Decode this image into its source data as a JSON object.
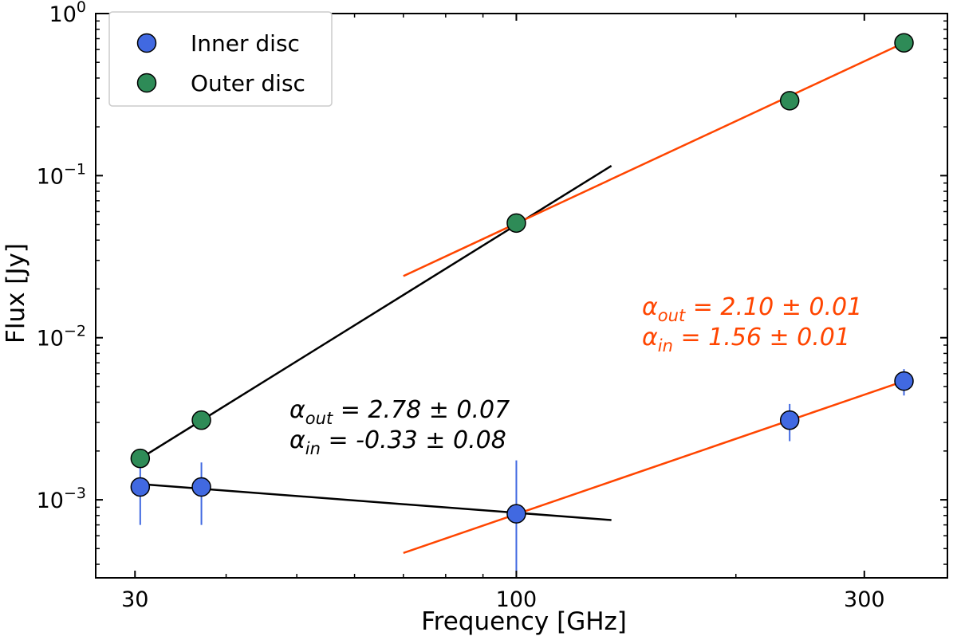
{
  "chart_data": {
    "type": "scatter",
    "xlabel": "Frequency [GHz]",
    "ylabel": "Flux [Jy]",
    "xscale": "log",
    "yscale": "log",
    "xlim": [
      26.5,
      390
    ],
    "ylim": [
      0.00033,
      1.0
    ],
    "grid": false,
    "legend_position": "top-left",
    "x_ticks": [
      {
        "value": 30,
        "label": "30"
      },
      {
        "value": 100,
        "label": "100"
      },
      {
        "value": 300,
        "label": "300"
      }
    ],
    "y_ticks": [
      {
        "value": 0.001,
        "base": "10",
        "exp": "−3"
      },
      {
        "value": 0.01,
        "base": "10",
        "exp": "−2"
      },
      {
        "value": 0.1,
        "base": "10",
        "exp": "−1"
      },
      {
        "value": 1.0,
        "base": "10",
        "exp": "0"
      }
    ],
    "series": [
      {
        "name": "Inner disc",
        "color": "#4169e1",
        "points": [
          {
            "x": 30.5,
            "y": 0.0012,
            "err_low": 0.0007,
            "err_high": 0.0017
          },
          {
            "x": 37,
            "y": 0.0012,
            "err_low": 0.0007,
            "err_high": 0.0017
          },
          {
            "x": 100,
            "y": 0.00082,
            "err_low": 0.00035,
            "err_high": 0.00175
          },
          {
            "x": 237,
            "y": 0.0031,
            "err_low": 0.0023,
            "err_high": 0.0039
          },
          {
            "x": 340,
            "y": 0.0054,
            "err_low": 0.0044,
            "err_high": 0.0064
          }
        ]
      },
      {
        "name": "Outer disc",
        "color": "#2e8b57",
        "points": [
          {
            "x": 30.5,
            "y": 0.0018
          },
          {
            "x": 37,
            "y": 0.0031
          },
          {
            "x": 100,
            "y": 0.051
          },
          {
            "x": 237,
            "y": 0.29
          },
          {
            "x": 340,
            "y": 0.66
          }
        ]
      }
    ],
    "fit_lines": [
      {
        "name": "outer-low-fit",
        "color": "#000000",
        "x": [
          30.5,
          135
        ],
        "y": [
          0.0018,
          0.115
        ]
      },
      {
        "name": "inner-low-fit",
        "color": "#000000",
        "x": [
          30.5,
          135
        ],
        "y": [
          0.00125,
          0.00075
        ]
      },
      {
        "name": "outer-high-fit",
        "color": "#ff4500",
        "x": [
          70,
          340
        ],
        "y": [
          0.024,
          0.66
        ]
      },
      {
        "name": "inner-high-fit",
        "color": "#ff4500",
        "x": [
          70,
          340
        ],
        "y": [
          0.00047,
          0.0054
        ]
      }
    ],
    "annotations": [
      {
        "name": "black-alpha-out",
        "color": "#000000",
        "symbol": "α",
        "sub": "out",
        "text": " = 2.78 ± 0.07"
      },
      {
        "name": "black-alpha-in",
        "color": "#000000",
        "symbol": "α",
        "sub": "in",
        "text": " = -0.33 ± 0.08"
      },
      {
        "name": "orange-alpha-out",
        "color": "#ff4500",
        "symbol": "α",
        "sub": "out",
        "text": " = 2.10 ± 0.01"
      },
      {
        "name": "orange-alpha-in",
        "color": "#ff4500",
        "symbol": "α",
        "sub": "in",
        "text": " = 1.56 ± 0.01"
      }
    ]
  }
}
